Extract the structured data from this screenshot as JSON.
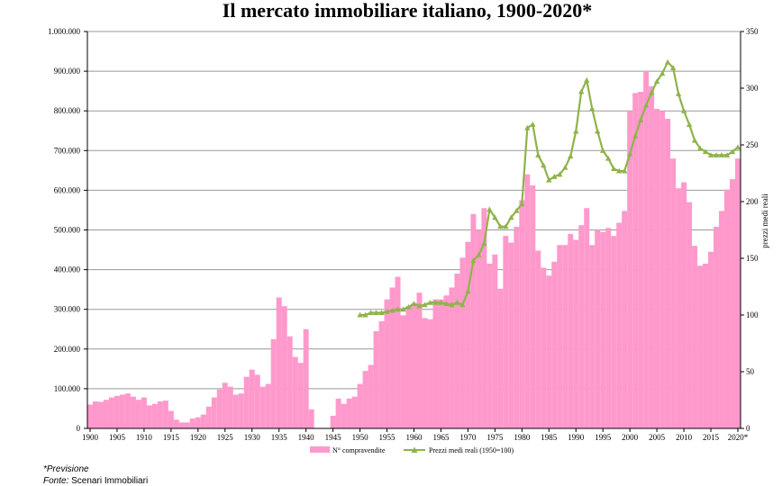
{
  "title": "Il mercato immobiliare italiano, 1900-2020*",
  "notes": {
    "asterisk": "*Previsione",
    "source_label": "Fonte:",
    "source_value": "Scenari Immobiliari"
  },
  "colors": {
    "bars": "#ff99cc",
    "line": "#8fb34a",
    "grid": "#999999",
    "axis": "#000000"
  },
  "chart_data": {
    "type": "bar+line",
    "title": "Il mercato immobiliare italiano, 1900-2020*",
    "x_ticks": [
      "1900",
      "1905",
      "1910",
      "1915",
      "1920",
      "1925",
      "1930",
      "1935",
      "1940",
      "1945",
      "1950",
      "1955",
      "1960",
      "1965",
      "1970",
      "1975",
      "1980",
      "1985",
      "1990",
      "1995",
      "2000",
      "2005",
      "2010",
      "2015",
      "2020*"
    ],
    "y_left_ticks": [
      "0",
      "100.000",
      "200.000",
      "300.000",
      "400.000",
      "500.000",
      "600.000",
      "700.000",
      "800.000",
      "900.000",
      "1.000.000"
    ],
    "y_right_ticks": [
      "0",
      "50",
      "100",
      "150",
      "200",
      "250",
      "300",
      "350"
    ],
    "y_left_lim": [
      0,
      1000000
    ],
    "y_right_lim": [
      0,
      350
    ],
    "y_right_label": "prezzi medi reali",
    "grid": true,
    "legend_position": "bottom",
    "bar_series": {
      "name": "N° compravendite",
      "x": [
        1900,
        1901,
        1902,
        1903,
        1904,
        1905,
        1906,
        1907,
        1908,
        1909,
        1910,
        1911,
        1912,
        1913,
        1914,
        1915,
        1916,
        1917,
        1918,
        1919,
        1920,
        1921,
        1922,
        1923,
        1924,
        1925,
        1926,
        1927,
        1928,
        1929,
        1930,
        1931,
        1932,
        1933,
        1934,
        1935,
        1936,
        1937,
        1938,
        1939,
        1940,
        1941,
        1942,
        1943,
        1944,
        1945,
        1946,
        1947,
        1948,
        1949,
        1950,
        1951,
        1952,
        1953,
        1954,
        1955,
        1956,
        1957,
        1958,
        1959,
        1960,
        1961,
        1962,
        1963,
        1964,
        1965,
        1966,
        1967,
        1968,
        1969,
        1970,
        1971,
        1972,
        1973,
        1974,
        1975,
        1976,
        1977,
        1978,
        1979,
        1980,
        1981,
        1982,
        1983,
        1984,
        1985,
        1986,
        1987,
        1988,
        1989,
        1990,
        1991,
        1992,
        1993,
        1994,
        1995,
        1996,
        1997,
        1998,
        1999,
        2000,
        2001,
        2002,
        2003,
        2004,
        2005,
        2006,
        2007,
        2008,
        2009,
        2010,
        2011,
        2012,
        2013,
        2014,
        2015,
        2016,
        2017,
        2018,
        2019,
        2020
      ],
      "values": [
        60000,
        68000,
        67000,
        72000,
        78000,
        82000,
        85000,
        88000,
        80000,
        72000,
        78000,
        58000,
        62000,
        68000,
        70000,
        44000,
        22000,
        15000,
        15000,
        25000,
        28000,
        35000,
        55000,
        78000,
        98000,
        115000,
        105000,
        85000,
        88000,
        130000,
        148000,
        135000,
        105000,
        112000,
        225000,
        330000,
        308000,
        232000,
        180000,
        165000,
        250000,
        48000,
        0,
        0,
        0,
        32000,
        75000,
        62000,
        75000,
        80000,
        112000,
        145000,
        160000,
        245000,
        270000,
        325000,
        355000,
        382000,
        285000,
        308000,
        315000,
        342000,
        278000,
        275000,
        325000,
        325000,
        335000,
        355000,
        390000,
        430000,
        470000,
        540000,
        500000,
        555000,
        415000,
        438000,
        352000,
        485000,
        468000,
        508000,
        575000,
        640000,
        612000,
        448000,
        405000,
        385000,
        420000,
        462000,
        462000,
        490000,
        475000,
        512000,
        555000,
        462000,
        500000,
        495000,
        505000,
        485000,
        518000,
        548000,
        800000,
        845000,
        848000,
        900000,
        862000,
        805000,
        800000,
        780000,
        680000,
        605000,
        620000,
        570000,
        460000,
        410000,
        415000,
        445000,
        508000,
        548000,
        602000,
        628000,
        680000
      ]
    },
    "line_series": {
      "name": "Prezzi medi reali (1950=100)",
      "x": [
        1950,
        1951,
        1952,
        1953,
        1954,
        1955,
        1956,
        1957,
        1958,
        1959,
        1960,
        1961,
        1962,
        1963,
        1964,
        1965,
        1966,
        1967,
        1968,
        1969,
        1970,
        1971,
        1972,
        1973,
        1974,
        1975,
        1976,
        1977,
        1978,
        1979,
        1980,
        1981,
        1982,
        1983,
        1984,
        1985,
        1986,
        1987,
        1988,
        1989,
        1990,
        1991,
        1992,
        1993,
        1994,
        1995,
        1996,
        1997,
        1998,
        1999,
        2000,
        2001,
        2002,
        2003,
        2004,
        2005,
        2006,
        2007,
        2008,
        2009,
        2010,
        2011,
        2012,
        2013,
        2014,
        2015,
        2016,
        2017,
        2018,
        2019,
        2020
      ],
      "values": [
        100,
        100,
        102,
        102,
        102,
        103,
        104,
        105,
        105,
        107,
        110,
        108,
        109,
        111,
        111,
        111,
        110,
        109,
        111,
        109,
        121,
        148,
        153,
        163,
        193,
        186,
        178,
        178,
        186,
        192,
        198,
        265,
        268,
        241,
        232,
        219,
        222,
        224,
        230,
        240,
        262,
        297,
        307,
        282,
        262,
        245,
        238,
        229,
        227,
        227,
        242,
        258,
        272,
        285,
        296,
        306,
        313,
        323,
        318,
        295,
        280,
        268,
        254,
        247,
        244,
        241,
        241,
        241,
        241,
        244,
        248
      ]
    }
  }
}
